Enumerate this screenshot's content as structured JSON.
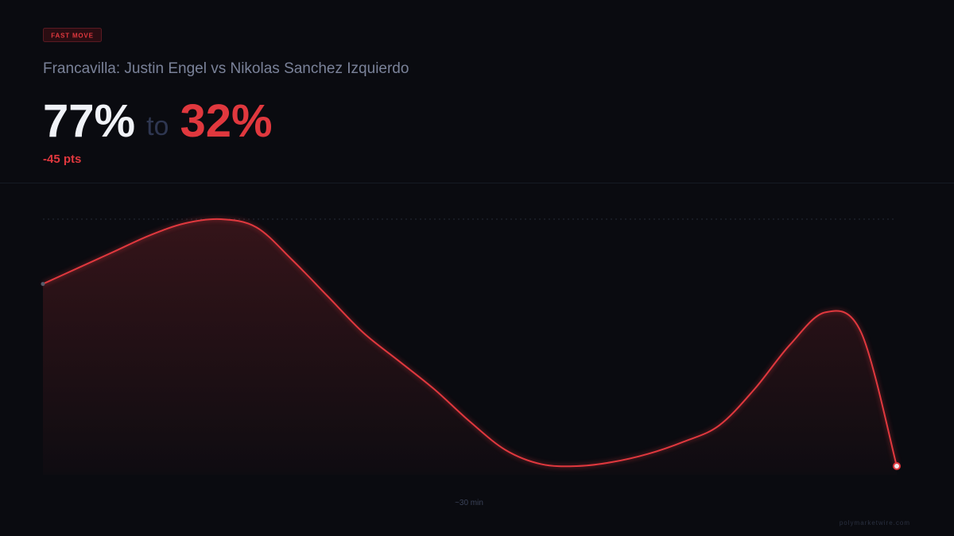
{
  "chart_data": {
    "type": "line",
    "badge": "FAST MOVE",
    "title": "Francavilla: Justin Engel vs Nikolas Sanchez Izquierdo",
    "from": {
      "value": 77,
      "label": "77%"
    },
    "connector": "to",
    "to": {
      "value": 32,
      "label": "32%"
    },
    "change": {
      "value": -45,
      "label": "-45 pts"
    },
    "x_label": "~30 min",
    "source": "polymarketwire.com",
    "color": "#e0383e",
    "values": [
      77,
      81,
      85,
      89,
      92,
      93,
      91,
      83,
      74,
      65,
      58,
      51,
      43,
      36,
      32.5,
      32,
      33,
      35,
      38,
      42,
      51,
      62,
      70,
      65,
      32
    ]
  }
}
